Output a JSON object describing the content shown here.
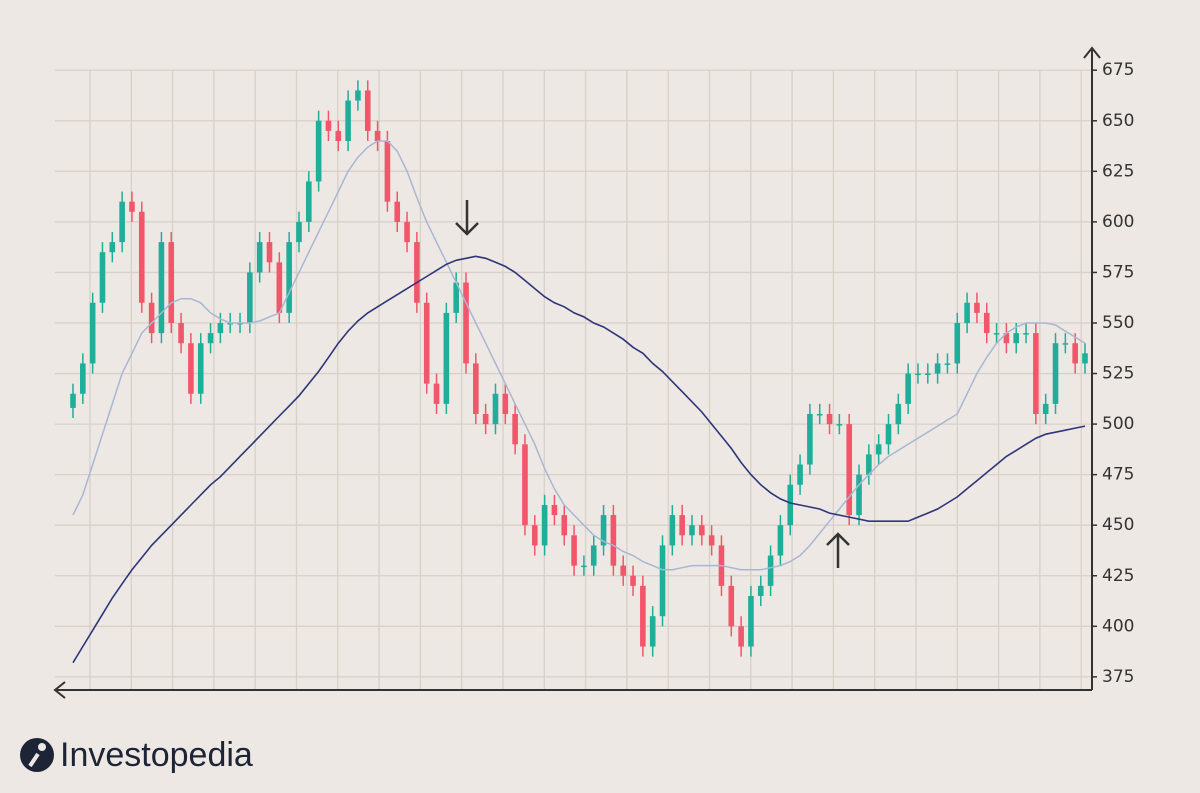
{
  "chart_data": {
    "type": "candlestick",
    "open": [
      508,
      515,
      530,
      560,
      585,
      590,
      610,
      605,
      560,
      545,
      590,
      550,
      540,
      515,
      540,
      545,
      550,
      550,
      550,
      575,
      590,
      580,
      555,
      590,
      600,
      620,
      650,
      645,
      640,
      660,
      665,
      645,
      640,
      610,
      600,
      590,
      560,
      520,
      510,
      555,
      570,
      530,
      505,
      500,
      515,
      505,
      490,
      450,
      440,
      460,
      455,
      445,
      430,
      430,
      440,
      455,
      430,
      425,
      420,
      390,
      405,
      440,
      455,
      445,
      450,
      445,
      440,
      420,
      400,
      390,
      415,
      420,
      435,
      450,
      470,
      480,
      505,
      505,
      500,
      500,
      455,
      475,
      485,
      490,
      500,
      510,
      525,
      525,
      525,
      530,
      530,
      550,
      560,
      555,
      545,
      545,
      540,
      545,
      545,
      505,
      510,
      540,
      540,
      530
    ],
    "high": [
      520,
      535,
      565,
      590,
      595,
      615,
      615,
      610,
      565,
      595,
      595,
      555,
      545,
      545,
      550,
      555,
      555,
      555,
      580,
      595,
      595,
      585,
      595,
      605,
      625,
      655,
      655,
      650,
      665,
      670,
      670,
      650,
      645,
      615,
      605,
      595,
      565,
      525,
      560,
      575,
      575,
      535,
      510,
      520,
      520,
      510,
      495,
      455,
      465,
      465,
      460,
      450,
      435,
      445,
      460,
      460,
      435,
      430,
      425,
      410,
      445,
      460,
      460,
      455,
      455,
      450,
      445,
      425,
      405,
      420,
      425,
      440,
      455,
      475,
      485,
      510,
      510,
      510,
      505,
      505,
      480,
      490,
      495,
      505,
      515,
      530,
      530,
      530,
      535,
      535,
      555,
      565,
      565,
      560,
      550,
      550,
      550,
      550,
      550,
      515,
      545,
      545,
      545,
      540
    ],
    "low": [
      503,
      510,
      525,
      555,
      580,
      585,
      600,
      555,
      540,
      540,
      545,
      535,
      510,
      510,
      535,
      540,
      545,
      545,
      545,
      570,
      575,
      550,
      550,
      585,
      595,
      615,
      640,
      635,
      635,
      655,
      640,
      635,
      605,
      595,
      585,
      555,
      515,
      505,
      505,
      550,
      525,
      500,
      495,
      495,
      500,
      485,
      445,
      435,
      435,
      450,
      440,
      425,
      425,
      425,
      435,
      425,
      420,
      415,
      385,
      385,
      400,
      435,
      440,
      440,
      440,
      435,
      415,
      395,
      385,
      385,
      410,
      415,
      430,
      445,
      465,
      475,
      500,
      495,
      495,
      450,
      450,
      470,
      480,
      485,
      495,
      505,
      520,
      520,
      520,
      525,
      525,
      545,
      550,
      540,
      540,
      535,
      535,
      540,
      500,
      500,
      505,
      535,
      525,
      525
    ],
    "close": [
      515,
      530,
      560,
      585,
      590,
      610,
      605,
      560,
      545,
      590,
      550,
      540,
      515,
      540,
      545,
      550,
      550,
      550,
      575,
      590,
      580,
      555,
      590,
      600,
      620,
      650,
      645,
      640,
      660,
      665,
      645,
      640,
      610,
      600,
      590,
      560,
      520,
      510,
      555,
      570,
      530,
      505,
      500,
      515,
      505,
      490,
      450,
      440,
      460,
      455,
      445,
      430,
      430,
      440,
      455,
      430,
      425,
      420,
      390,
      405,
      440,
      455,
      445,
      450,
      445,
      440,
      420,
      400,
      390,
      415,
      420,
      435,
      450,
      470,
      480,
      505,
      505,
      500,
      500,
      455,
      475,
      485,
      490,
      500,
      510,
      525,
      525,
      525,
      530,
      530,
      550,
      560,
      555,
      545,
      545,
      540,
      545,
      545,
      505,
      510,
      540,
      540,
      530,
      535
    ],
    "up_color": "#1fae9a",
    "down_color": "#f2566a",
    "series": [
      {
        "color": "#a9b6d3",
        "values": [
          455,
          465,
          480,
          495,
          510,
          525,
          535,
          545,
          550,
          555,
          560,
          562,
          562,
          560,
          555,
          552,
          550,
          550,
          550,
          551,
          553,
          555,
          565,
          575,
          585,
          595,
          605,
          615,
          625,
          632,
          637,
          640,
          640,
          635,
          625,
          612,
          600,
          590,
          580,
          570,
          560,
          550,
          540,
          530,
          520,
          510,
          500,
          490,
          478,
          468,
          460,
          455,
          450,
          445,
          442,
          440,
          437,
          435,
          432,
          430,
          428,
          428,
          429,
          430,
          430,
          430,
          430,
          429,
          428,
          428,
          428,
          429,
          430,
          432,
          435,
          440,
          446,
          452,
          458,
          464,
          470,
          475,
          480,
          484,
          487,
          490,
          493,
          496,
          499,
          502,
          505,
          515,
          525,
          533,
          540,
          545,
          548,
          550,
          550,
          550,
          549,
          546,
          543,
          540
        ]
      },
      {
        "color": "#2e3579",
        "values": [
          382,
          390,
          398,
          406,
          414,
          421,
          428,
          434,
          440,
          445,
          450,
          455,
          460,
          465,
          470,
          474,
          479,
          484,
          489,
          494,
          499,
          504,
          509,
          514,
          520,
          526,
          533,
          540,
          546,
          551,
          555,
          558,
          561,
          564,
          567,
          570,
          573,
          576,
          579,
          581,
          582,
          583,
          582,
          580,
          578,
          575,
          571,
          567,
          563,
          560,
          558,
          555,
          553,
          550,
          548,
          545,
          542,
          538,
          535,
          530,
          526,
          521,
          516,
          511,
          506,
          500,
          494,
          488,
          481,
          475,
          470,
          466,
          463,
          461,
          460,
          459,
          458,
          456,
          455,
          454,
          453,
          452,
          452,
          452,
          452,
          452,
          454,
          456,
          458,
          461,
          464,
          468,
          472,
          476,
          480,
          484,
          487,
          490,
          493,
          495,
          496,
          497,
          498,
          499
        ]
      }
    ],
    "ylim": [
      368.5,
      685
    ],
    "yticks": [
      375,
      400,
      425,
      450,
      475,
      500,
      525,
      550,
      575,
      600,
      625,
      650,
      675
    ],
    "grid": true
  },
  "brand": "Investopedia"
}
